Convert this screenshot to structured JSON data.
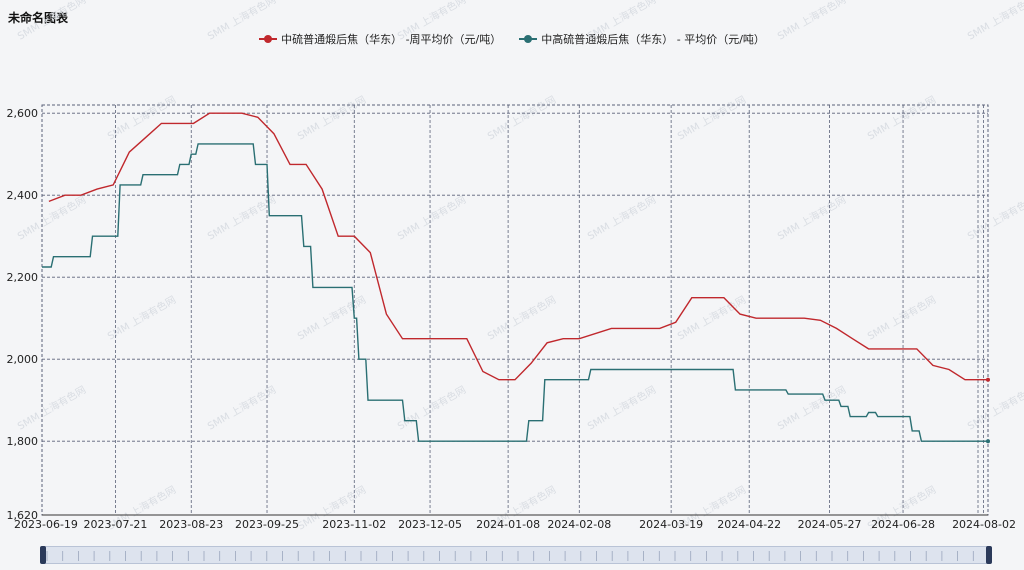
{
  "title": "未命名图表",
  "watermark": "SMM 上海有色网",
  "chart_data": {
    "type": "line",
    "title": "未命名图表",
    "x": [
      "2023-06-19",
      "2023-07-21",
      "2023-08-23",
      "2023-09-25",
      "2023-11-02",
      "2023-12-05",
      "2024-01-08",
      "2024-02-08",
      "2024-03-19",
      "2024-04-22",
      "2024-05-27",
      "2024-06-28",
      "2024-08-02"
    ],
    "y_ticks": [
      "1,620",
      "1,800",
      "2,000",
      "2,200",
      "2,400",
      "2,600"
    ],
    "ylim": [
      1620,
      2620
    ],
    "grid": true,
    "legend_position": "top",
    "series": [
      {
        "name": "中硫普通煅后焦（华东） -周平均价（元/吨）",
        "color": "#c0282d",
        "points": [
          [
            "2023-06-22",
            2385
          ],
          [
            "2023-06-29",
            2400
          ],
          [
            "2023-07-06",
            2400
          ],
          [
            "2023-07-13",
            2415
          ],
          [
            "2023-07-20",
            2425
          ],
          [
            "2023-07-27",
            2505
          ],
          [
            "2023-08-03",
            2540
          ],
          [
            "2023-08-10",
            2575
          ],
          [
            "2023-08-17",
            2575
          ],
          [
            "2023-08-24",
            2575
          ],
          [
            "2023-08-31",
            2600
          ],
          [
            "2023-09-07",
            2600
          ],
          [
            "2023-09-14",
            2600
          ],
          [
            "2023-09-21",
            2590
          ],
          [
            "2023-09-28",
            2550
          ],
          [
            "2023-10-05",
            2475
          ],
          [
            "2023-10-12",
            2475
          ],
          [
            "2023-10-19",
            2415
          ],
          [
            "2023-10-26",
            2300
          ],
          [
            "2023-11-02",
            2300
          ],
          [
            "2023-11-09",
            2260
          ],
          [
            "2023-11-16",
            2110
          ],
          [
            "2023-11-23",
            2050
          ],
          [
            "2023-11-30",
            2050
          ],
          [
            "2023-12-07",
            2050
          ],
          [
            "2023-12-14",
            2050
          ],
          [
            "2023-12-21",
            2050
          ],
          [
            "2023-12-28",
            1970
          ],
          [
            "2024-01-04",
            1950
          ],
          [
            "2024-01-11",
            1950
          ],
          [
            "2024-01-18",
            1990
          ],
          [
            "2024-01-25",
            2040
          ],
          [
            "2024-02-01",
            2050
          ],
          [
            "2024-02-08",
            2050
          ],
          [
            "2024-02-22",
            2075
          ],
          [
            "2024-02-29",
            2075
          ],
          [
            "2024-03-07",
            2075
          ],
          [
            "2024-03-14",
            2075
          ],
          [
            "2024-03-21",
            2090
          ],
          [
            "2024-03-28",
            2150
          ],
          [
            "2024-04-04",
            2150
          ],
          [
            "2024-04-11",
            2150
          ],
          [
            "2024-04-18",
            2110
          ],
          [
            "2024-04-25",
            2100
          ],
          [
            "2024-05-02",
            2100
          ],
          [
            "2024-05-09",
            2100
          ],
          [
            "2024-05-16",
            2100
          ],
          [
            "2024-05-23",
            2095
          ],
          [
            "2024-05-30",
            2075
          ],
          [
            "2024-06-06",
            2050
          ],
          [
            "2024-06-13",
            2025
          ],
          [
            "2024-06-20",
            2025
          ],
          [
            "2024-06-27",
            2025
          ],
          [
            "2024-07-04",
            2025
          ],
          [
            "2024-07-11",
            1985
          ],
          [
            "2024-07-18",
            1975
          ],
          [
            "2024-07-25",
            1950
          ],
          [
            "2024-08-01",
            1950
          ],
          [
            "2024-08-04",
            1950
          ]
        ]
      },
      {
        "name": "中高硫普通煅后焦（华东） - 平均价（元/吨）",
        "color": "#2a6f73",
        "points": [
          [
            "2023-06-19",
            2225
          ],
          [
            "2023-06-23",
            2225
          ],
          [
            "2023-06-24",
            2250
          ],
          [
            "2023-07-10",
            2250
          ],
          [
            "2023-07-11",
            2300
          ],
          [
            "2023-07-22",
            2300
          ],
          [
            "2023-07-23",
            2425
          ],
          [
            "2023-08-01",
            2425
          ],
          [
            "2023-08-02",
            2450
          ],
          [
            "2023-08-17",
            2450
          ],
          [
            "2023-08-18",
            2475
          ],
          [
            "2023-08-22",
            2475
          ],
          [
            "2023-08-23",
            2500
          ],
          [
            "2023-08-25",
            2500
          ],
          [
            "2023-08-26",
            2525
          ],
          [
            "2023-09-19",
            2525
          ],
          [
            "2023-09-20",
            2475
          ],
          [
            "2023-09-25",
            2475
          ],
          [
            "2023-09-26",
            2350
          ],
          [
            "2023-10-10",
            2350
          ],
          [
            "2023-10-11",
            2275
          ],
          [
            "2023-10-14",
            2275
          ],
          [
            "2023-10-15",
            2175
          ],
          [
            "2023-11-01",
            2175
          ],
          [
            "2023-11-02",
            2100
          ],
          [
            "2023-11-03",
            2100
          ],
          [
            "2023-11-04",
            2000
          ],
          [
            "2023-11-07",
            2000
          ],
          [
            "2023-11-08",
            1900
          ],
          [
            "2023-11-23",
            1900
          ],
          [
            "2023-11-24",
            1850
          ],
          [
            "2023-11-29",
            1850
          ],
          [
            "2023-11-30",
            1800
          ],
          [
            "2024-01-16",
            1800
          ],
          [
            "2024-01-17",
            1850
          ],
          [
            "2024-01-23",
            1850
          ],
          [
            "2024-01-24",
            1950
          ],
          [
            "2024-02-12",
            1950
          ],
          [
            "2024-02-13",
            1975
          ],
          [
            "2024-04-15",
            1975
          ],
          [
            "2024-04-16",
            1925
          ],
          [
            "2024-05-08",
            1925
          ],
          [
            "2024-05-09",
            1915
          ],
          [
            "2024-05-24",
            1915
          ],
          [
            "2024-05-25",
            1900
          ],
          [
            "2024-05-31",
            1900
          ],
          [
            "2024-06-01",
            1885
          ],
          [
            "2024-06-04",
            1885
          ],
          [
            "2024-06-05",
            1860
          ],
          [
            "2024-06-12",
            1860
          ],
          [
            "2024-06-13",
            1870
          ],
          [
            "2024-06-16",
            1870
          ],
          [
            "2024-06-17",
            1860
          ],
          [
            "2024-07-01",
            1860
          ],
          [
            "2024-07-02",
            1825
          ],
          [
            "2024-07-05",
            1825
          ],
          [
            "2024-07-06",
            1800
          ],
          [
            "2024-08-04",
            1800
          ]
        ]
      }
    ]
  }
}
